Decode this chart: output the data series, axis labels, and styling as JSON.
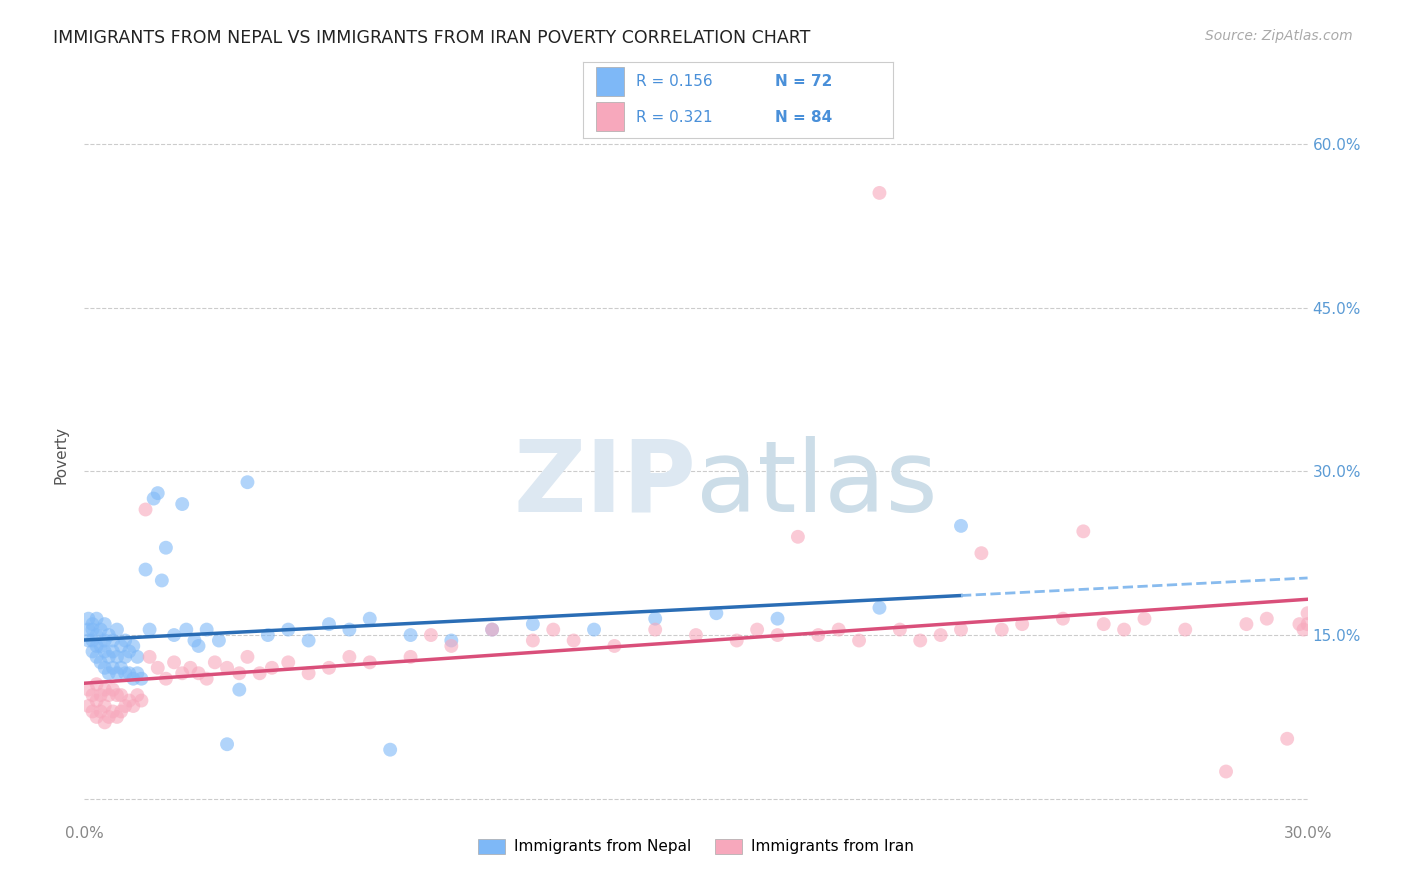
{
  "title": "IMMIGRANTS FROM NEPAL VS IMMIGRANTS FROM IRAN POVERTY CORRELATION CHART",
  "source": "Source: ZipAtlas.com",
  "ylabel": "Poverty",
  "xlim": [
    0.0,
    0.3
  ],
  "ylim": [
    -0.02,
    0.65
  ],
  "nepal_color": "#7eb8f7",
  "iran_color": "#f7a8bc",
  "nepal_R": 0.156,
  "nepal_N": 72,
  "iran_R": 0.321,
  "iran_N": 84,
  "nepal_line_color": "#2a6db5",
  "nepal_dash_color": "#88bbee",
  "iran_line_color": "#d94f7a",
  "legend_nepal": "Immigrants from Nepal",
  "legend_iran": "Immigrants from Iran",
  "nepal_x": [
    0.001,
    0.001,
    0.001,
    0.002,
    0.002,
    0.002,
    0.002,
    0.003,
    0.003,
    0.003,
    0.003,
    0.004,
    0.004,
    0.004,
    0.005,
    0.005,
    0.005,
    0.005,
    0.006,
    0.006,
    0.006,
    0.007,
    0.007,
    0.007,
    0.008,
    0.008,
    0.008,
    0.009,
    0.009,
    0.01,
    0.01,
    0.01,
    0.011,
    0.011,
    0.012,
    0.012,
    0.013,
    0.013,
    0.014,
    0.015,
    0.016,
    0.017,
    0.018,
    0.019,
    0.02,
    0.022,
    0.024,
    0.025,
    0.027,
    0.028,
    0.03,
    0.033,
    0.035,
    0.038,
    0.04,
    0.045,
    0.05,
    0.055,
    0.06,
    0.065,
    0.07,
    0.075,
    0.08,
    0.09,
    0.1,
    0.11,
    0.125,
    0.14,
    0.155,
    0.17,
    0.195,
    0.215
  ],
  "nepal_y": [
    0.145,
    0.155,
    0.165,
    0.135,
    0.145,
    0.155,
    0.16,
    0.13,
    0.14,
    0.15,
    0.165,
    0.125,
    0.14,
    0.155,
    0.12,
    0.135,
    0.145,
    0.16,
    0.115,
    0.13,
    0.15,
    0.12,
    0.135,
    0.145,
    0.115,
    0.13,
    0.155,
    0.12,
    0.14,
    0.115,
    0.13,
    0.145,
    0.115,
    0.135,
    0.11,
    0.14,
    0.115,
    0.13,
    0.11,
    0.21,
    0.155,
    0.275,
    0.28,
    0.2,
    0.23,
    0.15,
    0.27,
    0.155,
    0.145,
    0.14,
    0.155,
    0.145,
    0.05,
    0.1,
    0.29,
    0.15,
    0.155,
    0.145,
    0.16,
    0.155,
    0.165,
    0.045,
    0.15,
    0.145,
    0.155,
    0.16,
    0.155,
    0.165,
    0.17,
    0.165,
    0.175,
    0.25
  ],
  "iran_x": [
    0.001,
    0.001,
    0.002,
    0.002,
    0.003,
    0.003,
    0.003,
    0.004,
    0.004,
    0.005,
    0.005,
    0.005,
    0.006,
    0.006,
    0.007,
    0.007,
    0.008,
    0.008,
    0.009,
    0.009,
    0.01,
    0.011,
    0.012,
    0.013,
    0.014,
    0.015,
    0.016,
    0.018,
    0.02,
    0.022,
    0.024,
    0.026,
    0.028,
    0.03,
    0.032,
    0.035,
    0.038,
    0.04,
    0.043,
    0.046,
    0.05,
    0.055,
    0.06,
    0.065,
    0.07,
    0.08,
    0.085,
    0.09,
    0.1,
    0.11,
    0.115,
    0.12,
    0.13,
    0.14,
    0.15,
    0.16,
    0.165,
    0.17,
    0.175,
    0.18,
    0.185,
    0.19,
    0.195,
    0.2,
    0.205,
    0.21,
    0.215,
    0.22,
    0.225,
    0.23,
    0.24,
    0.245,
    0.25,
    0.255,
    0.26,
    0.27,
    0.28,
    0.285,
    0.29,
    0.295,
    0.298,
    0.299,
    0.3,
    0.3
  ],
  "iran_y": [
    0.085,
    0.1,
    0.08,
    0.095,
    0.075,
    0.09,
    0.105,
    0.08,
    0.095,
    0.07,
    0.085,
    0.1,
    0.075,
    0.095,
    0.08,
    0.1,
    0.075,
    0.095,
    0.08,
    0.095,
    0.085,
    0.09,
    0.085,
    0.095,
    0.09,
    0.265,
    0.13,
    0.12,
    0.11,
    0.125,
    0.115,
    0.12,
    0.115,
    0.11,
    0.125,
    0.12,
    0.115,
    0.13,
    0.115,
    0.12,
    0.125,
    0.115,
    0.12,
    0.13,
    0.125,
    0.13,
    0.15,
    0.14,
    0.155,
    0.145,
    0.155,
    0.145,
    0.14,
    0.155,
    0.15,
    0.145,
    0.155,
    0.15,
    0.24,
    0.15,
    0.155,
    0.145,
    0.555,
    0.155,
    0.145,
    0.15,
    0.155,
    0.225,
    0.155,
    0.16,
    0.165,
    0.245,
    0.16,
    0.155,
    0.165,
    0.155,
    0.025,
    0.16,
    0.165,
    0.055,
    0.16,
    0.155,
    0.17,
    0.16
  ]
}
